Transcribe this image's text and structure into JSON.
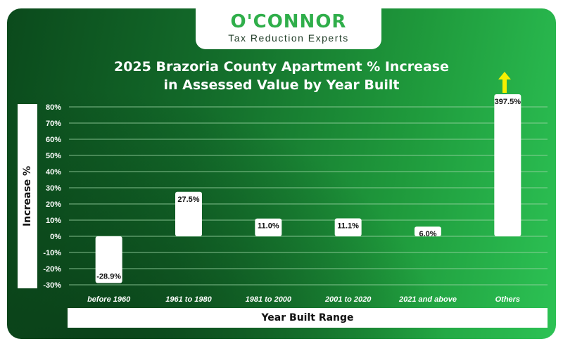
{
  "brand": {
    "name": "O'CONNOR",
    "tagline": "Tax Reduction Experts"
  },
  "colors": {
    "bar": "#ffffff",
    "grid": "#9fd6a8",
    "tick_text": "#ffffff",
    "arrow": "#f5f000"
  },
  "icons": {
    "up_arrow": "arrow-up-icon"
  },
  "chart_data": {
    "type": "bar",
    "title_line1": "2025 Brazoria County Apartment % Increase",
    "title_line2": "in Assessed Value by Year Built",
    "xlabel": "Year Built Range",
    "ylabel": "Increase %",
    "ylim": [
      -30,
      80
    ],
    "yticks": [
      "80%",
      "70%",
      "60%",
      "50%",
      "40%",
      "30%",
      "20%",
      "10%",
      "0%",
      "-10%",
      "-20%",
      "-30%"
    ],
    "grid": true,
    "categories": [
      "before 1960",
      "1961 to 1980",
      "1981 to 2000",
      "2001 to 2020",
      "2021 and above",
      "Others"
    ],
    "values": [
      -28.9,
      27.5,
      11.0,
      11.1,
      6.0,
      397.5
    ],
    "data_labels": [
      "-28.9%",
      "27.5%",
      "11.0%",
      "11.1%",
      "6.0%",
      "397.5%"
    ]
  }
}
